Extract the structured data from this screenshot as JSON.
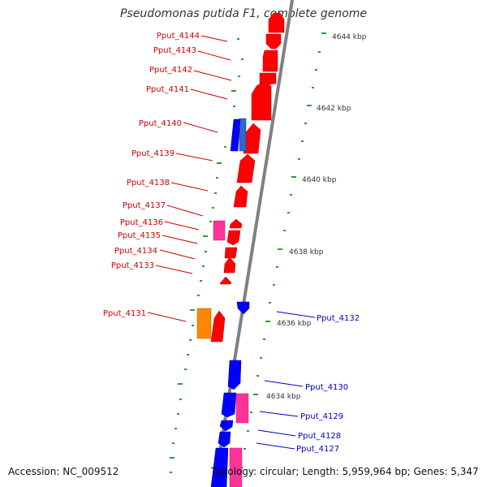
{
  "title": "Pseudomonas putida F1, complete genome",
  "accession": "Accession: NC_009512",
  "topology": "Topology: circular; Length: 5,959,964 bp; Genes: 5,347",
  "colors": {
    "forward_gene": "#ff0000",
    "reverse_gene": "#0000ff",
    "label_forward": "#cc0000",
    "label_reverse": "#0000cc",
    "tick": "#339933",
    "backbone": "#808080",
    "pink": "#ff3399",
    "orange": "#ff8800",
    "steelblue": "#3366cc"
  },
  "scale_labels": [
    "4644 kbp",
    "4642 kbp",
    "4640 kbp",
    "4638 kbp",
    "4636 kbp",
    "4634 kbp"
  ],
  "forward_labels": [
    "Pput_4144",
    "Pput_4143",
    "Pput_4142",
    "Pput_4141",
    "Pput_4140",
    "Pput_4139",
    "Pput_4138",
    "Pput_4137",
    "Pput_4136",
    "Pput_4135",
    "Pput_4134",
    "Pput_4133",
    "Pput_4131"
  ],
  "reverse_labels": [
    "Pput_4132",
    "Pput_4130",
    "Pput_4129",
    "Pput_4128",
    "Pput_4127"
  ]
}
